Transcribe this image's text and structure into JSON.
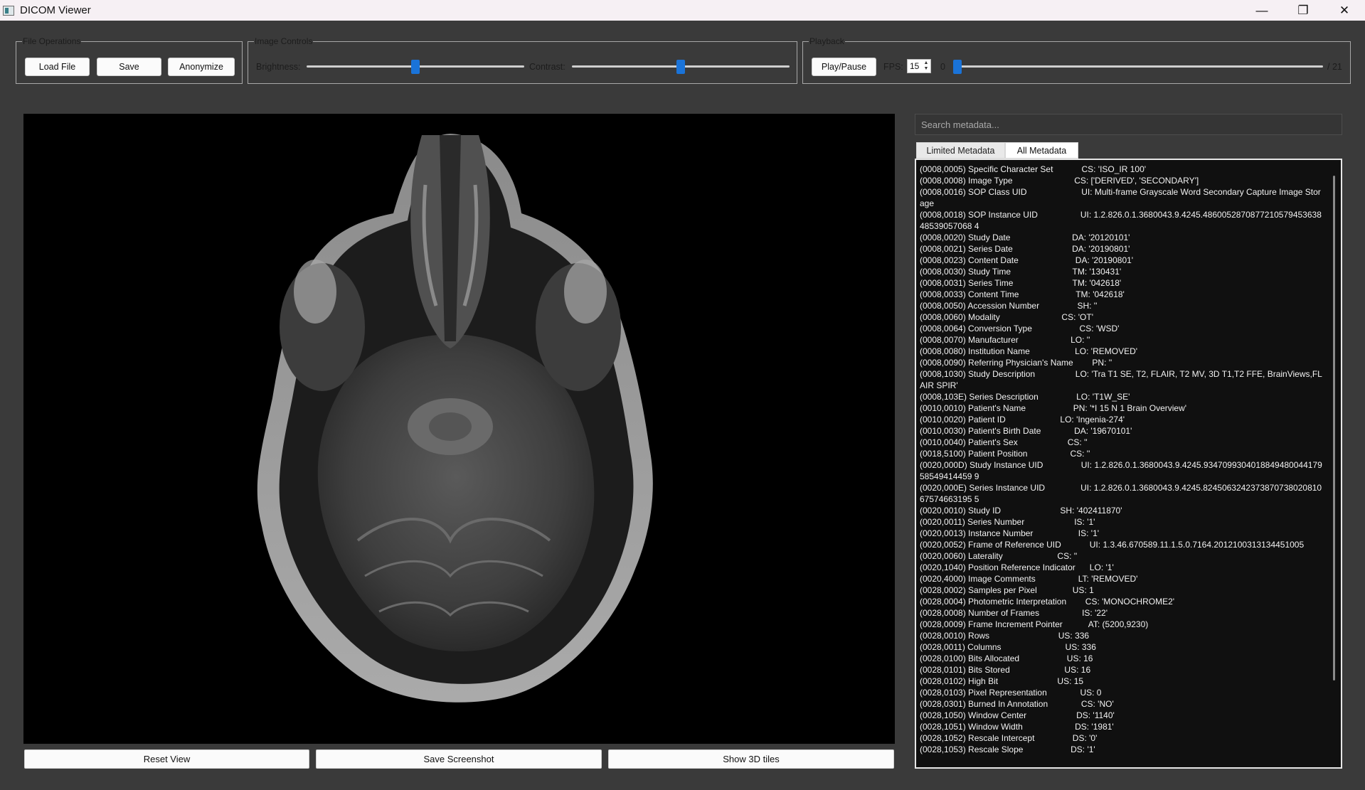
{
  "window": {
    "title": "DICOM Viewer",
    "minimize_glyph": "—",
    "maximize_glyph": "❐",
    "close_glyph": "✕"
  },
  "file_ops": {
    "title": "File Operations",
    "load_label": "Load File",
    "save_label": "Save",
    "anonymize_label": "Anonymize"
  },
  "image_controls": {
    "title": "Image Controls",
    "brightness_label": "Brightness:",
    "brightness_value": 0.5,
    "contrast_label": "Contrast:",
    "contrast_value": 0.5
  },
  "playback": {
    "title": "Playback",
    "play_pause_label": "Play/Pause",
    "fps_label": "FPS:",
    "fps_value": "15",
    "frame_current": "0",
    "frame_total": "/ 21",
    "frame_position": 0
  },
  "viewer_buttons": {
    "reset_label": "Reset View",
    "screenshot_label": "Save Screenshot",
    "tiles_label": "Show 3D tiles"
  },
  "metadata": {
    "search_placeholder": "Search metadata...",
    "tab_limited": "Limited Metadata",
    "tab_all": "All Metadata",
    "active_tab": "All Metadata",
    "text": "(0008,0005) Specific Character Set            CS: 'ISO_IR 100'\n(0008,0008) Image Type                          CS: ['DERIVED', 'SECONDARY']\n(0008,0016) SOP Class UID                       UI: Multi-frame Grayscale Word Secondary Capture Image Storage\n(0008,0018) SOP Instance UID                  UI: 1.2.826.0.1.3680043.9.4245.486005287087721057945363848539057068 4\n(0008,0020) Study Date                          DA: '20120101'\n(0008,0021) Series Date                         DA: '20190801'\n(0008,0023) Content Date                        DA: '20190801'\n(0008,0030) Study Time                          TM: '130431'\n(0008,0031) Series Time                         TM: '042618'\n(0008,0033) Content Time                        TM: '042618'\n(0008,0050) Accession Number                SH: ''\n(0008,0060) Modality                          CS: 'OT'\n(0008,0064) Conversion Type                    CS: 'WSD'\n(0008,0070) Manufacturer                      LO: ''\n(0008,0080) Institution Name                   LO: 'REMOVED'\n(0008,0090) Referring Physician's Name        PN: ''\n(0008,1030) Study Description                 LO: 'Tra T1 SE, T2, FLAIR, T2 MV, 3D T1,T2 FFE, BrainViews,FLAIR SPIR'\n(0008,103E) Series Description                LO: 'T1W_SE'\n(0010,0010) Patient's Name                    PN: '*I 15 N 1 Brain Overview'\n(0010,0020) Patient ID                       LO: 'Ingenia-274'\n(0010,0030) Patient's Birth Date              DA: '19670101'\n(0010,0040) Patient's Sex                     CS: ''\n(0018,5100) Patient Position                  CS: ''\n(0020,000D) Study Instance UID                UI: 1.2.826.0.1.3680043.9.4245.934709930401884948004417958549414459 9\n(0020,000E) Series Instance UID               UI: 1.2.826.0.1.3680043.9.4245.824506324237387073802081067574663195 5\n(0020,0010) Study ID                         SH: '402411870'\n(0020,0011) Series Number                     IS: '1'\n(0020,0013) Instance Number                   IS: '1'\n(0020,0052) Frame of Reference UID            UI: 1.3.46.670589.11.1.5.0.7164.2012100313134451005\n(0020,0060) Laterality                       CS: ''\n(0020,1040) Position Reference Indicator      LO: '1'\n(0020,4000) Image Comments                  LT: 'REMOVED'\n(0028,0002) Samples per Pixel               US: 1\n(0028,0004) Photometric Interpretation        CS: 'MONOCHROME2'\n(0028,0008) Number of Frames                  IS: '22'\n(0028,0009) Frame Increment Pointer           AT: (5200,9230)\n(0028,0010) Rows                             US: 336\n(0028,0011) Columns                           US: 336\n(0028,0100) Bits Allocated                    US: 16\n(0028,0101) Bits Stored                       US: 16\n(0028,0102) High Bit                         US: 15\n(0028,0103) Pixel Representation              US: 0\n(0028,0301) Burned In Annotation              CS: 'NO'\n(0028,1050) Window Center                     DS: '1140'\n(0028,1051) Window Width                      DS: '1981'\n(0028,1052) Rescale Intercept                DS: '0'\n(0028,1053) Rescale Slope                    DS: '1'"
  },
  "colors": {
    "accent": "#1a73d8",
    "panel_bg": "#3a3a3a",
    "metadata_bg": "#101010"
  }
}
